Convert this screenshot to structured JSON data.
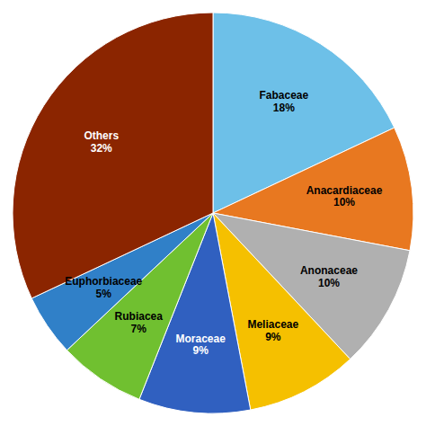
{
  "chart_data": {
    "type": "pie",
    "categories": [
      "Fabaceae",
      "Anacardiaceae",
      "Anonaceae",
      "Meliaceae",
      "Moraceae",
      "Rubiacea",
      "Euphorbiaceae",
      "Others"
    ],
    "values": [
      18,
      10,
      10,
      9,
      9,
      7,
      5,
      32
    ],
    "value_labels": [
      "18%",
      "10%",
      "10%",
      "9%",
      "9%",
      "7%",
      "5%",
      "32%"
    ],
    "colors": [
      "#6DC0E8",
      "#E87820",
      "#B0B0B0",
      "#F5C000",
      "#3060C0",
      "#70C030",
      "#3080C8",
      "#8B2500"
    ],
    "data_labels": true
  }
}
